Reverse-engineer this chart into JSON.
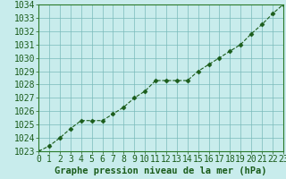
{
  "x": [
    0,
    1,
    2,
    3,
    4,
    5,
    6,
    7,
    8,
    9,
    10,
    11,
    12,
    13,
    14,
    15,
    16,
    17,
    18,
    19,
    20,
    21,
    22,
    23
  ],
  "y": [
    1023.0,
    1023.4,
    1024.0,
    1024.7,
    1025.3,
    1025.3,
    1025.3,
    1025.8,
    1026.3,
    1027.0,
    1027.5,
    1028.3,
    1028.3,
    1028.3,
    1028.3,
    1029.0,
    1029.5,
    1030.0,
    1030.5,
    1031.0,
    1031.8,
    1032.5,
    1033.3,
    1034.0
  ],
  "xlabel": "Graphe pression niveau de la mer (hPa)",
  "xlim": [
    0,
    23
  ],
  "ylim": [
    1023,
    1034
  ],
  "yticks": [
    1023,
    1024,
    1025,
    1026,
    1027,
    1028,
    1029,
    1030,
    1031,
    1032,
    1033,
    1034
  ],
  "xticks": [
    0,
    1,
    2,
    3,
    4,
    5,
    6,
    7,
    8,
    9,
    10,
    11,
    12,
    13,
    14,
    15,
    16,
    17,
    18,
    19,
    20,
    21,
    22,
    23
  ],
  "line_color": "#1a5c1a",
  "marker_color": "#1a5c1a",
  "bg_color": "#c8ecec",
  "grid_color": "#7ababa",
  "xlabel_color": "#1a5c1a",
  "xlabel_fontsize": 7.5,
  "tick_fontsize": 7.0,
  "tick_color": "#1a5c1a",
  "spine_color": "#2a7a2a"
}
